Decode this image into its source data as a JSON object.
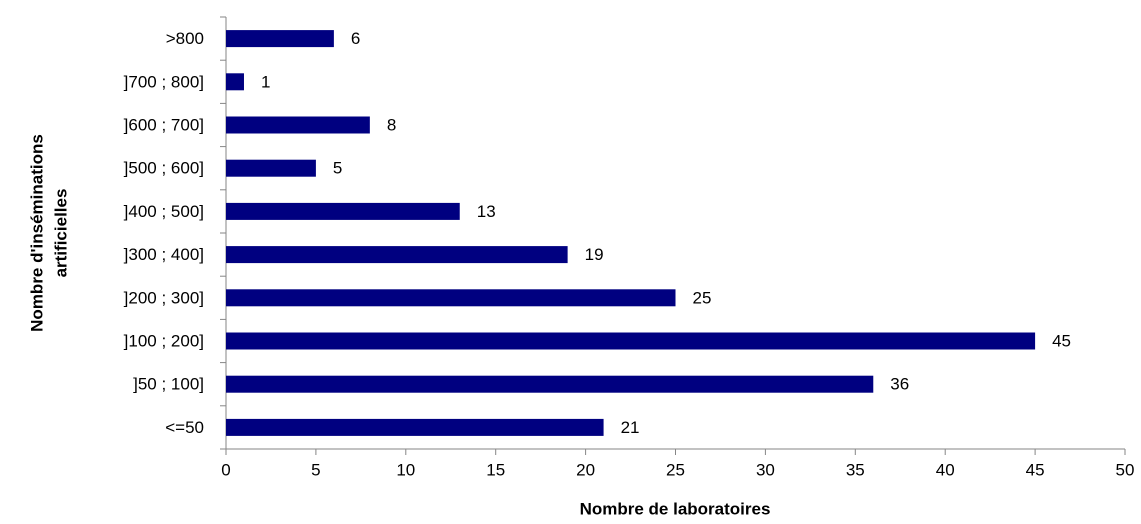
{
  "chart_data": {
    "type": "bar",
    "orientation": "horizontal",
    "xlabel": "Nombre de laboratoires",
    "ylabel": [
      "Nombre d'inséminations",
      "artificielles"
    ],
    "categories": [
      "<=50",
      "]50 ; 100]",
      "]100 ; 200]",
      "]200 ; 300]",
      "]300 ; 400]",
      "]400 ; 500]",
      "]500 ; 600]",
      "]600 ; 700]",
      "]700 ; 800]",
      ">800"
    ],
    "values": [
      21,
      36,
      45,
      25,
      19,
      13,
      5,
      8,
      1,
      6
    ],
    "color": "#000080",
    "xlim": [
      0,
      50
    ],
    "xticks": [
      0,
      5,
      10,
      15,
      20,
      25,
      30,
      35,
      40,
      45,
      50
    ],
    "grid": false
  }
}
